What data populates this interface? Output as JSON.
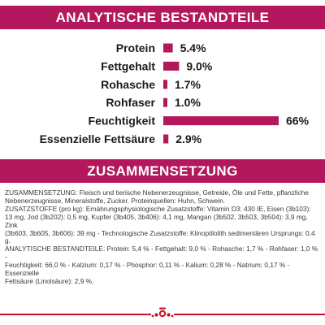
{
  "sections": {
    "analysis_title": "ANALYTISCHE BESTANDTEILE",
    "composition_title": "ZUSAMMENSETZUNG"
  },
  "colors": {
    "accent": "#b3185d",
    "footer_line": "#c8102e",
    "text": "#1a1a1a"
  },
  "chart_data": {
    "type": "bar",
    "orientation": "horizontal",
    "categories": [
      "Protein",
      "Fettgehalt",
      "Rohasche",
      "Rohfaser",
      "Feuchtigkeit",
      "Essenzielle Fettsäure"
    ],
    "values": [
      5.4,
      9.0,
      1.7,
      1.0,
      66,
      2.9
    ],
    "value_labels": [
      "5.4%",
      "9.0%",
      "1.7%",
      "1.0%",
      "66%",
      "2.9%"
    ],
    "xlim": [
      0,
      66
    ],
    "grid": false,
    "legend": "none",
    "bar_color": "#b3185d"
  },
  "composition": {
    "lines": [
      "ZUSAMMENSETZUNG: Fleisch und tierische Nebenerzeugnisse, Getreide, Öle und Fette, pflanzliche",
      "Nebenerzeugnisse, Mineralstoffe, Zucker. Proteinquellen: Huhn, Schwein.",
      "ZUSATZSTOFFE (pro kg): Ernährungsphysiologische Zusatzstoffe: Vitamin D3: 430 IE, Eisen (3b103):",
      "13 mg, Jod (3b202): 0,5 mg, Kupfer (3b405, 3b406): 4,1 mg, Mangan (3b502, 3b503, 3b504): 3,9 mg, Zink",
      "(3b603, 3b605, 3b606): 39 mg - Technologische Zusatzstoffe: Klinoptilolith sedimentären Ursprungs: 0,4 g.",
      "ANALYTISCHE BESTANDTEILE: Protein: 5,4 % - Fettgehalt: 9,0 % - Rohasche: 1,7 % - Rohfaser: 1,0 % -",
      "Feuchtigkeit: 66,0 % - Kalzium: 0,17 % - Phosphor: 0,11 % - Kalium: 0,28 % - Natrium: 0,17 % - Essenzielle",
      "Fettsäure (Linolsäure): 2,9 %."
    ]
  },
  "footer": {
    "logo_icon": "royal-canin-crown-logo"
  }
}
